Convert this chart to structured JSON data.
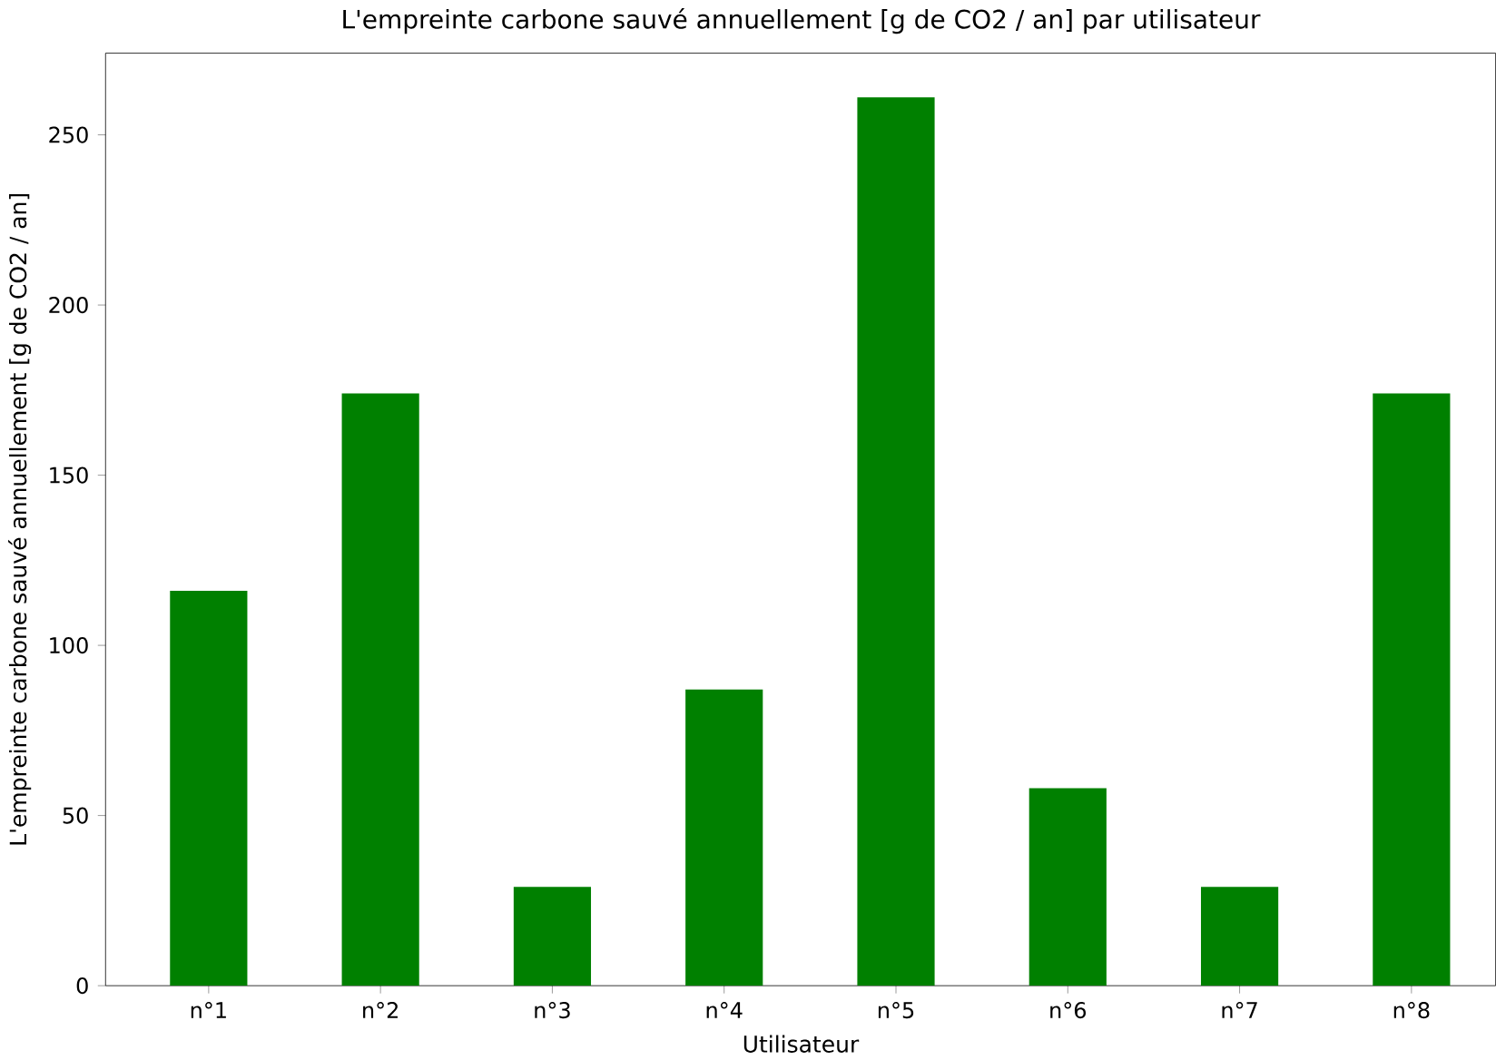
{
  "chart_data": {
    "type": "bar",
    "title": "L'empreinte carbone sauvé annuellement [g de CO2 / an] par utilisateur",
    "xlabel": "Utilisateur",
    "ylabel": "L'empreinte carbone sauvé annuellement [g de CO2 / an]",
    "categories": [
      "n°1",
      "n°2",
      "n°3",
      "n°4",
      "n°5",
      "n°6",
      "n°7",
      "n°8"
    ],
    "values": [
      116,
      174,
      29,
      87,
      261,
      58,
      29,
      174
    ],
    "color": "#008000",
    "ylim": [
      0,
      274
    ],
    "yticks": [
      0,
      50,
      100,
      150,
      200,
      250
    ]
  }
}
